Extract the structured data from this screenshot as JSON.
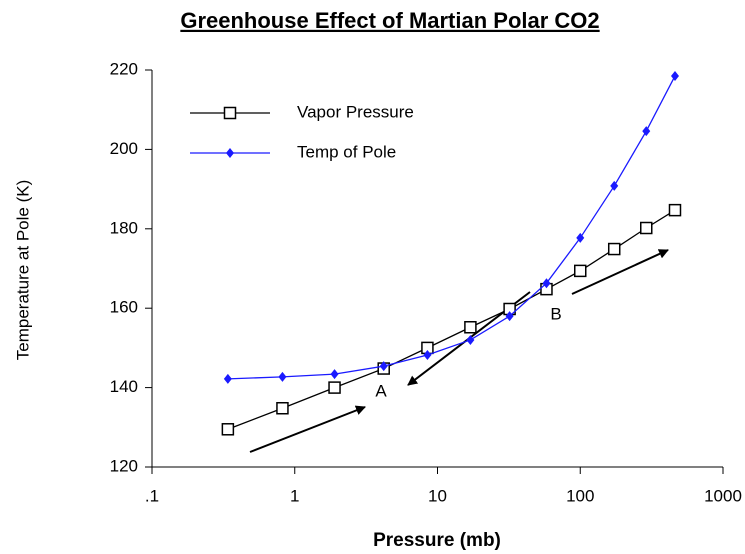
{
  "chart_data": {
    "type": "line",
    "title": "Greenhouse Effect of Martian Polar CO2",
    "xlabel": "Pressure (mb)",
    "ylabel": "Temperature at Pole (K)",
    "xscale": "log",
    "xlim": [
      0.1,
      1000
    ],
    "xticks": [
      {
        "value": 0.1,
        "label": ".1"
      },
      1,
      10,
      100,
      1000
    ],
    "ylim": [
      120,
      220
    ],
    "yticks": [
      120,
      140,
      160,
      180,
      200,
      220
    ],
    "legend": "upper left",
    "grid": false,
    "series": [
      {
        "name": "Vapor Pressure",
        "color": "#000000",
        "marker": "square",
        "x": [
          0.34,
          0.82,
          1.9,
          4.2,
          8.5,
          17,
          32,
          58,
          100,
          173,
          290,
          461
        ],
        "values": [
          129.5,
          134.8,
          140,
          144.8,
          150,
          155.2,
          159.8,
          164.8,
          169.4,
          174.9,
          180.2,
          184.7
        ]
      },
      {
        "name": "Temp of Pole",
        "color": "#1a1aff",
        "marker": "diamond",
        "x": [
          0.34,
          0.82,
          1.9,
          4.2,
          8.5,
          17,
          32,
          58,
          100,
          173,
          290,
          461
        ],
        "values": [
          142.2,
          142.7,
          143.4,
          145.4,
          148.2,
          152,
          158,
          166.3,
          177.7,
          190.8,
          204.6,
          218.5
        ]
      }
    ],
    "annotations": [
      {
        "text": "A"
      },
      {
        "text": "B"
      }
    ]
  }
}
